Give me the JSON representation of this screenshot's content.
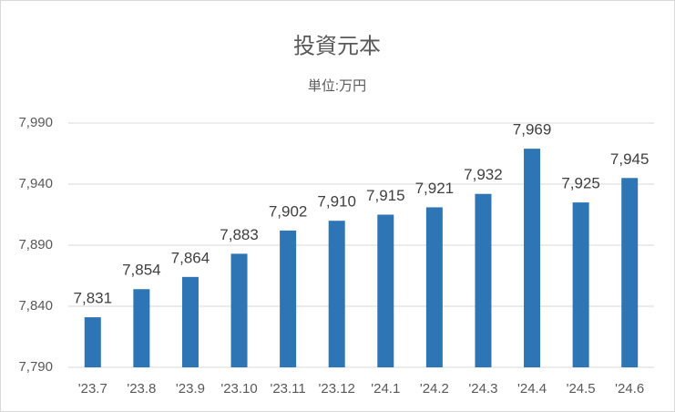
{
  "chart_data": {
    "type": "bar",
    "title": "投資元本",
    "subtitle": "単位:万円",
    "categories": [
      "'23.7",
      "'23.8",
      "'23.9",
      "'23.10",
      "'23.11",
      "'23.12",
      "'24.1",
      "'24.2",
      "'24.3",
      "'24.4",
      "'24.5",
      "'24.6"
    ],
    "values": [
      7831,
      7854,
      7864,
      7883,
      7902,
      7910,
      7915,
      7921,
      7932,
      7969,
      7925,
      7945
    ],
    "value_labels": [
      "7,831",
      "7,854",
      "7,864",
      "7,883",
      "7,902",
      "7,910",
      "7,915",
      "7,921",
      "7,932",
      "7,969",
      "7,925",
      "7,945"
    ],
    "color": "#2e75b6",
    "ylim": [
      7790,
      7990
    ],
    "yticks": [
      {
        "value": 7790,
        "label": "7,790"
      },
      {
        "value": 7840,
        "label": "7,840"
      },
      {
        "value": 7890,
        "label": "7,890"
      },
      {
        "value": 7940,
        "label": "7,940"
      },
      {
        "value": 7990,
        "label": "7,990"
      }
    ],
    "grid": true
  }
}
